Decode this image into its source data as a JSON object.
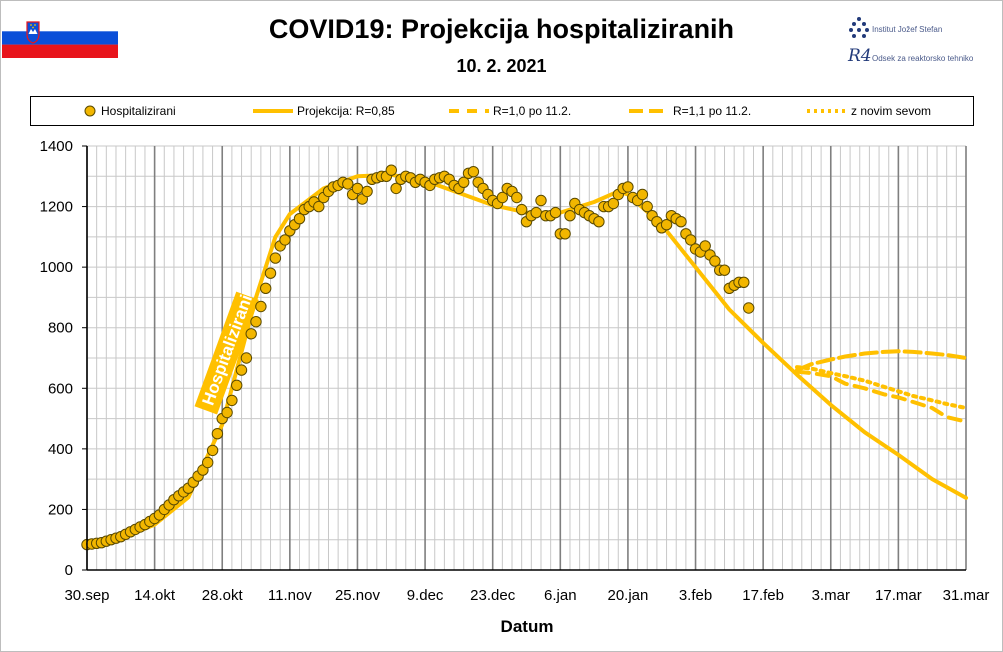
{
  "header": {
    "title": "COVID19: Projekcija hospitaliziranih",
    "date": "10. 2. 2021"
  },
  "logo": {
    "institute": "Institut Jožef Stefan",
    "department": "Odsek za reaktorsko tehniko",
    "mark": "R4"
  },
  "colors": {
    "series": "#FFC000",
    "marker_fill": "#F2B600",
    "marker_edge": "#5a4a00",
    "grid_major": "#7f7f7f",
    "grid_minor": "#c8c8c8",
    "flag_white": "#ffffff",
    "flag_blue": "#0b4fd8",
    "flag_red": "#e8141b"
  },
  "chart_data": {
    "type": "line",
    "xlabel": "Datum",
    "ylabel": "",
    "ylim": [
      0,
      1400
    ],
    "yticks": [
      0,
      200,
      400,
      600,
      800,
      1000,
      1200,
      1400
    ],
    "xlim": [
      "2020-09-30",
      "2021-03-31"
    ],
    "xticks": [
      "30.sep",
      "14.okt",
      "28.okt",
      "11.nov",
      "25.nov",
      "9.dec",
      "23.dec",
      "6.jan",
      "20.jan",
      "3.feb",
      "17.feb",
      "3.mar",
      "17.mar",
      "31.mar"
    ],
    "grid": "on",
    "legend_placement": "top",
    "annotation": "Hospitalizirani",
    "series": [
      {
        "name": "Hospitalizirani",
        "style": "markers",
        "start_date": "2020-09-30",
        "values": [
          84,
          86,
          88,
          90,
          95,
          100,
          105,
          110,
          118,
          126,
          134,
          142,
          150,
          160,
          170,
          182,
          200,
          215,
          232,
          245,
          258,
          270,
          290,
          310,
          330,
          355,
          395,
          450,
          500,
          520,
          560,
          610,
          660,
          700,
          780,
          820,
          870,
          930,
          980,
          1030,
          1070,
          1090,
          1120,
          1140,
          1160,
          1190,
          1200,
          1215,
          1200,
          1230,
          1250,
          1265,
          1270,
          1280,
          1275,
          1240,
          1260,
          1225,
          1250,
          1290,
          1295,
          1300,
          1300,
          1320,
          1260,
          1290,
          1300,
          1295,
          1280,
          1290,
          1280,
          1270,
          1290,
          1295,
          1300,
          1290,
          1270,
          1260,
          1280,
          1310,
          1315,
          1280,
          1260,
          1240,
          1220,
          1210,
          1230,
          1260,
          1250,
          1230,
          1190,
          1150,
          1170,
          1180,
          1220,
          1170,
          1170,
          1180,
          1110,
          1110,
          1170,
          1210,
          1190,
          1180,
          1170,
          1160,
          1150,
          1200,
          1200,
          1210,
          1240,
          1260,
          1265,
          1230,
          1220,
          1240,
          1200,
          1170,
          1150,
          1130,
          1140,
          1170,
          1160,
          1150,
          1110,
          1090,
          1060,
          1050,
          1070,
          1040,
          1020,
          990,
          990,
          930,
          940,
          950,
          950,
          865
        ]
      },
      {
        "name": "Projekcija: R=0,85",
        "style": "solid",
        "points": [
          [
            "2020-09-30",
            84
          ],
          [
            "2020-10-07",
            105
          ],
          [
            "2020-10-14",
            150
          ],
          [
            "2020-10-21",
            240
          ],
          [
            "2020-10-28",
            480
          ],
          [
            "2020-11-04",
            900
          ],
          [
            "2020-11-08",
            1100
          ],
          [
            "2020-11-11",
            1175
          ],
          [
            "2020-11-18",
            1260
          ],
          [
            "2020-11-25",
            1300
          ],
          [
            "2020-12-02",
            1305
          ],
          [
            "2020-12-09",
            1285
          ],
          [
            "2020-12-16",
            1245
          ],
          [
            "2020-12-23",
            1205
          ],
          [
            "2020-12-30",
            1180
          ],
          [
            "2021-01-06",
            1180
          ],
          [
            "2021-01-13",
            1215
          ],
          [
            "2021-01-18",
            1250
          ],
          [
            "2021-01-20",
            1240
          ],
          [
            "2021-01-27",
            1140
          ],
          [
            "2021-02-03",
            1000
          ],
          [
            "2021-02-10",
            860
          ],
          [
            "2021-02-17",
            750
          ],
          [
            "2021-02-24",
            645
          ],
          [
            "2021-03-03",
            545
          ],
          [
            "2021-03-10",
            455
          ],
          [
            "2021-03-17",
            380
          ],
          [
            "2021-03-24",
            300
          ],
          [
            "2021-03-31",
            238
          ]
        ]
      },
      {
        "name": "R=1,0 po 11.2.",
        "style": "dashed",
        "points": [
          [
            "2021-02-24",
            655
          ],
          [
            "2021-02-27",
            650
          ],
          [
            "2021-03-03",
            640
          ],
          [
            "2021-03-06",
            615
          ],
          [
            "2021-03-10",
            600
          ],
          [
            "2021-03-14",
            580
          ],
          [
            "2021-03-17",
            570
          ],
          [
            "2021-03-20",
            555
          ],
          [
            "2021-03-24",
            535
          ],
          [
            "2021-03-27",
            505
          ],
          [
            "2021-03-31",
            490
          ]
        ]
      },
      {
        "name": "R=1,1 po 11.2.",
        "style": "dashed",
        "points": [
          [
            "2021-02-24",
            660
          ],
          [
            "2021-02-27",
            680
          ],
          [
            "2021-03-03",
            695
          ],
          [
            "2021-03-06",
            705
          ],
          [
            "2021-03-10",
            715
          ],
          [
            "2021-03-14",
            720
          ],
          [
            "2021-03-17",
            722
          ],
          [
            "2021-03-20",
            720
          ],
          [
            "2021-03-24",
            715
          ],
          [
            "2021-03-27",
            710
          ],
          [
            "2021-03-31",
            700
          ]
        ]
      },
      {
        "name": "z novim sevom",
        "style": "dotted",
        "points": [
          [
            "2021-02-24",
            670
          ],
          [
            "2021-02-27",
            665
          ],
          [
            "2021-03-03",
            650
          ],
          [
            "2021-03-06",
            640
          ],
          [
            "2021-03-10",
            625
          ],
          [
            "2021-03-14",
            605
          ],
          [
            "2021-03-17",
            590
          ],
          [
            "2021-03-20",
            575
          ],
          [
            "2021-03-24",
            560
          ],
          [
            "2021-03-27",
            548
          ],
          [
            "2021-03-31",
            535
          ]
        ]
      }
    ]
  }
}
